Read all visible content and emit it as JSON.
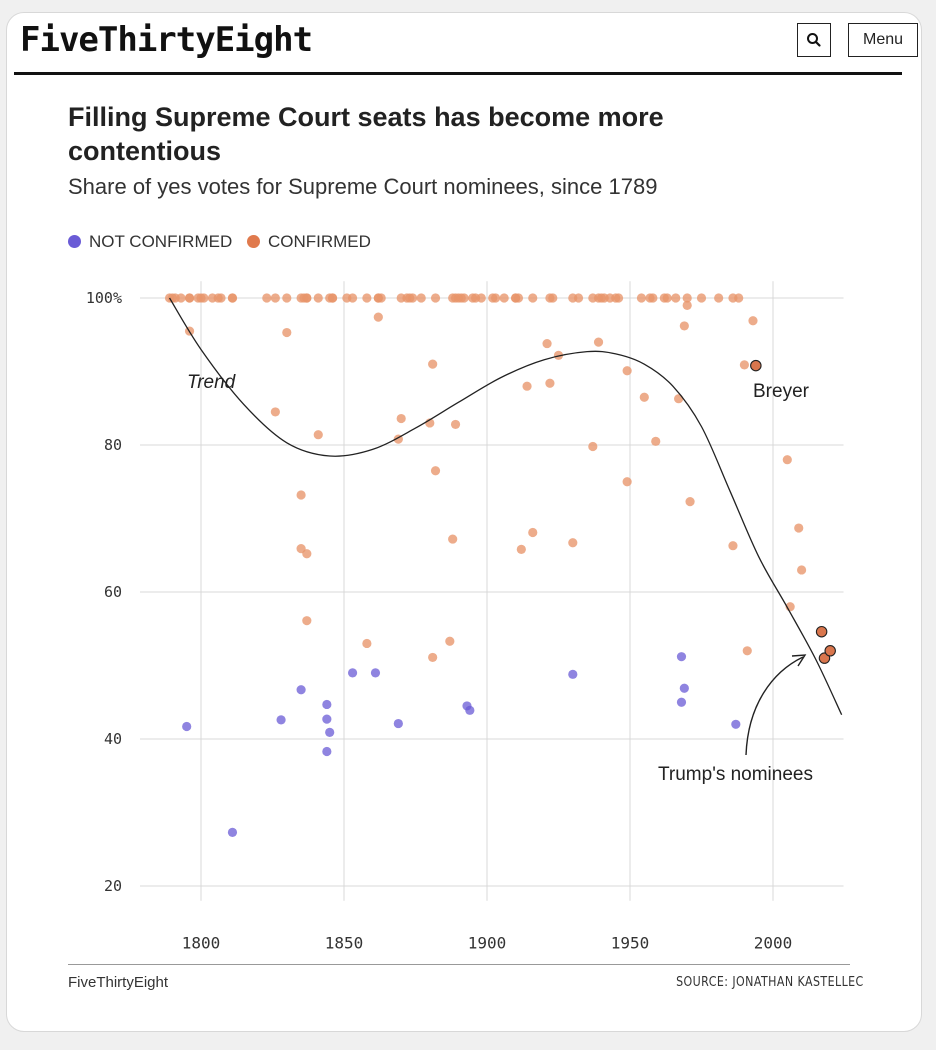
{
  "header": {
    "logo": "FiveThirtyEight",
    "search_icon": "search-icon",
    "menu_label": "Menu"
  },
  "chart_data": {
    "type": "scatter",
    "title": "Filling Supreme Court seats has become more contentious",
    "subtitle": "Share of yes votes for Supreme Court nominees, since 1789",
    "xlim": [
      1785,
      2025
    ],
    "ylim": [
      18,
      102
    ],
    "xticks": [
      "1800",
      "1850",
      "1900",
      "1950",
      "2000"
    ],
    "yticks": [
      {
        "value": 100,
        "label": "100%"
      },
      {
        "value": 80,
        "label": "80"
      },
      {
        "value": 60,
        "label": "60"
      },
      {
        "value": 40,
        "label": "40"
      },
      {
        "value": 20,
        "label": "20"
      }
    ],
    "grid": true,
    "legend_position": "top-left",
    "colors": {
      "not_confirmed": "#6a5bd6",
      "confirmed": "#e8956a",
      "highlight": "#d9764d"
    },
    "series": [
      {
        "name": "NOT CONFIRMED",
        "points": [
          [
            1795,
            41.7
          ],
          [
            1811,
            27.3
          ],
          [
            1828,
            42.6
          ],
          [
            1835,
            46.7
          ],
          [
            1844,
            44.7
          ],
          [
            1844,
            42.7
          ],
          [
            1844,
            38.3
          ],
          [
            1845,
            40.9
          ],
          [
            1853,
            49
          ],
          [
            1861,
            49
          ],
          [
            1869,
            42.1
          ],
          [
            1893,
            44.5
          ],
          [
            1894,
            43.9
          ],
          [
            1930,
            48.8
          ],
          [
            1968,
            51.2
          ],
          [
            1968,
            45
          ],
          [
            1969,
            46.9
          ],
          [
            1987,
            42
          ]
        ]
      },
      {
        "name": "CONFIRMED",
        "points": [
          [
            1789,
            100
          ],
          [
            1790,
            100
          ],
          [
            1791,
            100
          ],
          [
            1793,
            100
          ],
          [
            1796,
            100
          ],
          [
            1796,
            100
          ],
          [
            1799,
            100
          ],
          [
            1800,
            100
          ],
          [
            1801,
            100
          ],
          [
            1804,
            100
          ],
          [
            1806,
            100
          ],
          [
            1807,
            100
          ],
          [
            1811,
            100
          ],
          [
            1811,
            100
          ],
          [
            1823,
            100
          ],
          [
            1826,
            100
          ],
          [
            1830,
            100
          ],
          [
            1835,
            100
          ],
          [
            1836,
            100
          ],
          [
            1837,
            100
          ],
          [
            1837,
            100
          ],
          [
            1841,
            100
          ],
          [
            1845,
            100
          ],
          [
            1846,
            100
          ],
          [
            1846,
            100
          ],
          [
            1851,
            100
          ],
          [
            1853,
            100
          ],
          [
            1858,
            100
          ],
          [
            1862,
            100
          ],
          [
            1862,
            100
          ],
          [
            1863,
            100
          ],
          [
            1870,
            100
          ],
          [
            1872,
            100
          ],
          [
            1873,
            100
          ],
          [
            1874,
            100
          ],
          [
            1877,
            100
          ],
          [
            1882,
            100
          ],
          [
            1888,
            100
          ],
          [
            1889,
            100
          ],
          [
            1890,
            100
          ],
          [
            1891,
            100
          ],
          [
            1892,
            100
          ],
          [
            1895,
            100
          ],
          [
            1896,
            100
          ],
          [
            1898,
            100
          ],
          [
            1902,
            100
          ],
          [
            1903,
            100
          ],
          [
            1906,
            100
          ],
          [
            1910,
            100
          ],
          [
            1910,
            100
          ],
          [
            1911,
            100
          ],
          [
            1916,
            100
          ],
          [
            1922,
            100
          ],
          [
            1923,
            100
          ],
          [
            1930,
            100
          ],
          [
            1932,
            100
          ],
          [
            1937,
            100
          ],
          [
            1939,
            100
          ],
          [
            1940,
            100
          ],
          [
            1941,
            100
          ],
          [
            1943,
            100
          ],
          [
            1945,
            100
          ],
          [
            1946,
            100
          ],
          [
            1954,
            100
          ],
          [
            1957,
            100
          ],
          [
            1958,
            100
          ],
          [
            1962,
            100
          ],
          [
            1963,
            100
          ],
          [
            1966,
            100
          ],
          [
            1970,
            100
          ],
          [
            1975,
            100
          ],
          [
            1981,
            100
          ],
          [
            1986,
            100
          ],
          [
            1988,
            100
          ],
          [
            1796,
            95.5
          ],
          [
            1826,
            84.5
          ],
          [
            1830,
            95.3
          ],
          [
            1835,
            73.2
          ],
          [
            1835,
            65.9
          ],
          [
            1837,
            65.2
          ],
          [
            1837,
            56.1
          ],
          [
            1841,
            81.4
          ],
          [
            1858,
            53
          ],
          [
            1862,
            97.4
          ],
          [
            1869,
            80.8
          ],
          [
            1870,
            83.6
          ],
          [
            1880,
            83
          ],
          [
            1881,
            91
          ],
          [
            1881,
            51.1
          ],
          [
            1882,
            76.5
          ],
          [
            1887,
            53.3
          ],
          [
            1888,
            67.2
          ],
          [
            1889,
            82.8
          ],
          [
            1912,
            65.8
          ],
          [
            1914,
            88
          ],
          [
            1916,
            68.1
          ],
          [
            1921,
            93.8
          ],
          [
            1922,
            88.4
          ],
          [
            1925,
            92.2
          ],
          [
            1930,
            66.7
          ],
          [
            1937,
            79.8
          ],
          [
            1939,
            94
          ],
          [
            1949,
            90.1
          ],
          [
            1949,
            75
          ],
          [
            1955,
            86.5
          ],
          [
            1959,
            80.5
          ],
          [
            1967,
            86.3
          ],
          [
            1969,
            96.2
          ],
          [
            1970,
            99
          ],
          [
            1971,
            72.3
          ],
          [
            1986,
            66.3
          ],
          [
            1990,
            90.9
          ],
          [
            1991,
            52
          ],
          [
            1993,
            96.9
          ],
          [
            2005,
            78
          ],
          [
            2006,
            58
          ],
          [
            2009,
            68.7
          ],
          [
            2010,
            63
          ]
        ]
      },
      {
        "name": "Trump's nominees",
        "points": [
          [
            2017,
            54.6
          ],
          [
            2018,
            51
          ],
          [
            2020,
            52
          ]
        ]
      },
      {
        "name": "Breyer",
        "points": [
          [
            1994,
            90.8
          ]
        ]
      }
    ],
    "trend": [
      [
        1789,
        100
      ],
      [
        1800,
        93
      ],
      [
        1815,
        85.5
      ],
      [
        1830,
        80.3
      ],
      [
        1845,
        78.5
      ],
      [
        1860,
        79.4
      ],
      [
        1875,
        82.3
      ],
      [
        1890,
        85.8
      ],
      [
        1905,
        89.2
      ],
      [
        1920,
        91.6
      ],
      [
        1935,
        92.7
      ],
      [
        1945,
        92.4
      ],
      [
        1955,
        91
      ],
      [
        1965,
        88
      ],
      [
        1975,
        82.5
      ],
      [
        1985,
        73.7
      ],
      [
        1995,
        64.8
      ],
      [
        2005,
        57.9
      ],
      [
        2015,
        50.8
      ],
      [
        2024,
        43.3
      ]
    ],
    "annotations": {
      "trend": "Trend",
      "breyer": "Breyer",
      "trump": "Trump's nominees"
    }
  },
  "footer": {
    "left": "FiveThirtyEight",
    "source": "SOURCE: JONATHAN KASTELLEC"
  }
}
